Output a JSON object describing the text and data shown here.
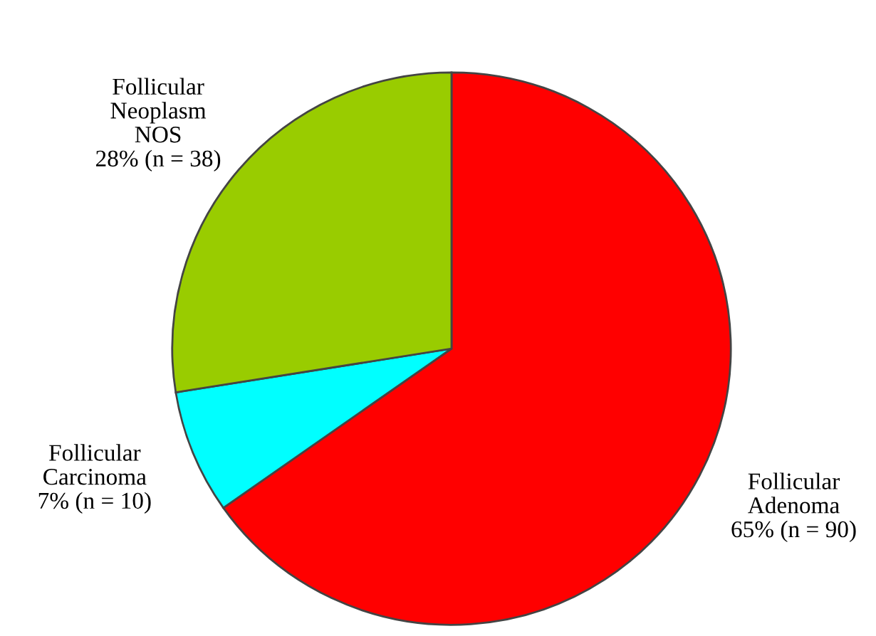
{
  "chart_data": {
    "type": "pie",
    "categories": [
      "Follicular\nAdenoma",
      "Follicular\nCarcinoma",
      "Follicular\nNeoplasm\nNOS"
    ],
    "values": [
      90,
      10,
      38
    ],
    "colors": [
      "#ff0000",
      "#00ffff",
      "#99cc00"
    ],
    "value_labels": [
      "65% (n = 90)",
      "7% (n = 10)",
      "28% (n = 38)"
    ]
  }
}
